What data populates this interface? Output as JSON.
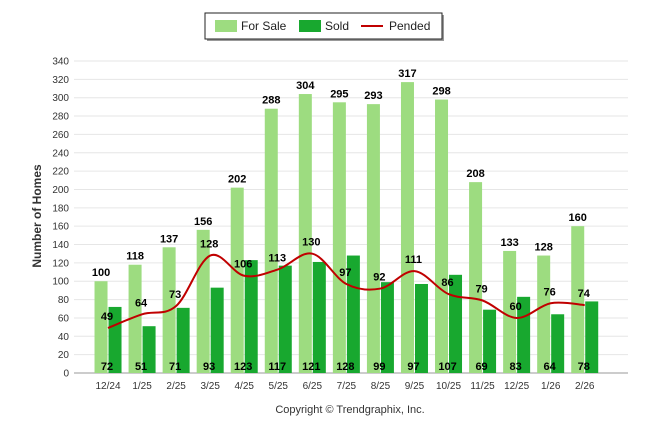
{
  "chart_data": {
    "type": "bar",
    "ylabel": "Number of Homes",
    "ylim": [
      0,
      340
    ],
    "ytick_step": 20,
    "grid": true,
    "legend_position": "top-center",
    "categories": [
      "12/24",
      "1/25",
      "2/25",
      "3/25",
      "4/25",
      "5/25",
      "6/25",
      "7/25",
      "8/25",
      "9/25",
      "10/25",
      "11/25",
      "12/25",
      "1/26",
      "2/26"
    ],
    "series": [
      {
        "name": "For Sale",
        "kind": "bar",
        "color": "#9ddc80",
        "values": [
          100,
          118,
          137,
          156,
          202,
          288,
          304,
          295,
          293,
          317,
          298,
          208,
          133,
          128,
          160
        ]
      },
      {
        "name": "Sold",
        "kind": "bar",
        "color": "#18a82f",
        "values": [
          72,
          51,
          71,
          93,
          123,
          117,
          121,
          128,
          99,
          97,
          107,
          69,
          83,
          64,
          78
        ]
      },
      {
        "name": "Pended",
        "kind": "line",
        "color": "#c00000",
        "values": [
          49,
          64,
          73,
          128,
          106,
          113,
          130,
          97,
          92,
          111,
          86,
          79,
          60,
          76,
          74
        ]
      }
    ]
  },
  "footer": {
    "copyright": "Copyright © Trendgraphix, Inc."
  }
}
